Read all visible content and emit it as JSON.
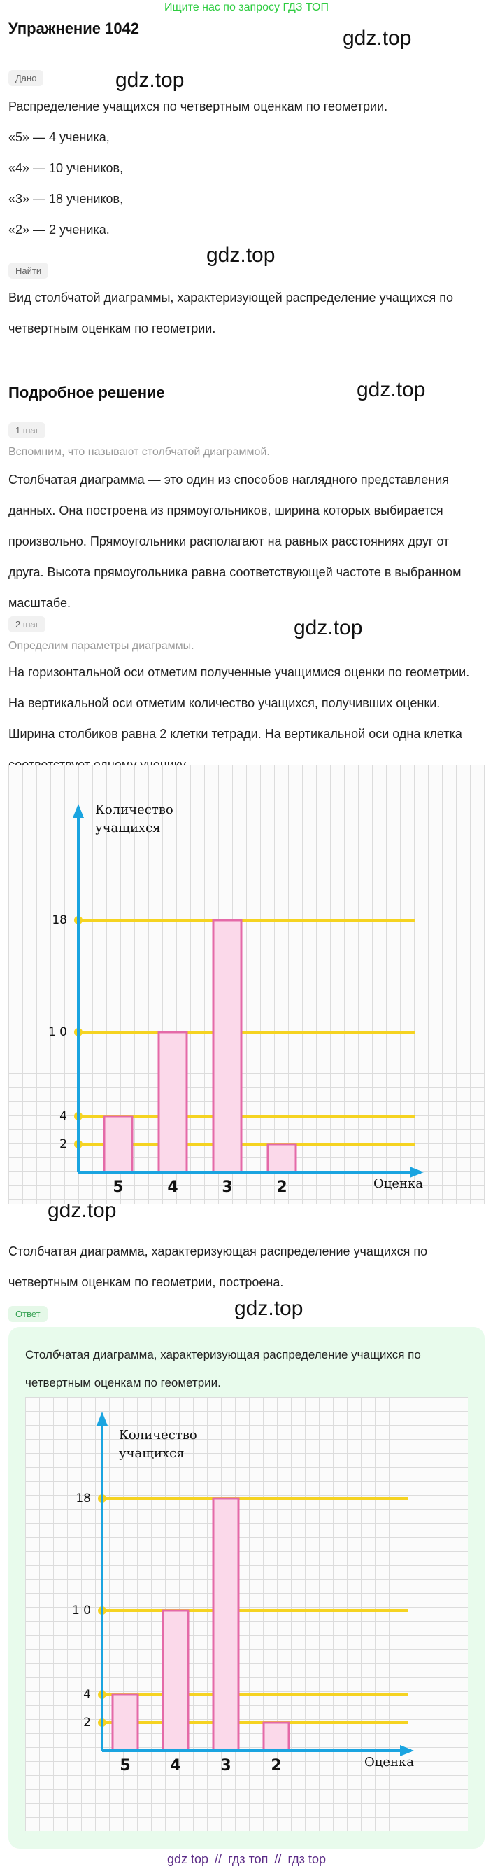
{
  "banner": "Ищите нас по запросу ГДЗ ТОП",
  "exercise_title": "Упражнение 1042",
  "watermark": "gdz.top",
  "given": {
    "badge": "Дано",
    "intro": "Распределение учащихся по четвертным оценкам по геометрии.",
    "lines": [
      "«5» — 4 ученика,",
      "«4» — 10 учеников,",
      "«3» — 18 учеников,",
      "«2» — 2 ученика."
    ]
  },
  "find": {
    "badge": "Найти",
    "lines": [
      "Вид столбчатой диаграммы, характеризующей распределение учащихся по",
      "четвертным оценкам по геометрии."
    ]
  },
  "solution": {
    "title": "Подробное решение",
    "step1": {
      "badge": "1 шаг",
      "hint": "Вспомним, что называют столбчатой диаграммой.",
      "lines": [
        "Столбчатая диаграмма — это один из способов наглядного представления",
        "данных. Она построена из прямоугольников, ширина которых выбирается",
        "произвольно. Прямоугольники располагают на равных расстояниях друг от",
        "друга. Высота прямоугольника равна соответствующей частоте в выбранном",
        "масштабе."
      ]
    },
    "step2": {
      "badge": "2 шаг",
      "hint": "Определим параметры диаграммы.",
      "lines": [
        "На горизонтальной оси отметим полученные учащимися оценки по геометрии.",
        "На вертикальной оси отметим количество учащихся, получивших оценки.",
        "Ширина столбиков равна 2 клетки тетради. На вертикальной оси одна клетка",
        "соответствует одному ученику."
      ]
    },
    "conclusion": [
      "Столбчатая диаграмма, характеризующая распределение учащихся по",
      "четвертным оценкам по геометрии, построена."
    ]
  },
  "answer": {
    "badge": "Ответ",
    "lines": [
      "Столбчатая диаграмма, характеризующая распределение учащихся по",
      "четвертным оценкам по геометрии."
    ]
  },
  "chart_data": {
    "type": "bar",
    "categories": [
      "5",
      "4",
      "3",
      "2"
    ],
    "values": [
      4,
      10,
      18,
      2
    ],
    "ylabel_lines": [
      "Количество",
      "учащихся"
    ],
    "xlabel": "Оценка",
    "yticks": [
      2,
      4,
      10,
      18
    ],
    "ytick_labels": [
      "2",
      "4",
      "1 0",
      "18"
    ],
    "ylim": [
      0,
      20
    ],
    "bar_color": "#fbd9ea",
    "bar_edge": "#e46aa8",
    "line_color": "#f5d321",
    "axis_color": "#1aa4e0"
  },
  "footer": [
    "gdz top",
    "//",
    "гдз топ",
    "//",
    "гдз top"
  ]
}
